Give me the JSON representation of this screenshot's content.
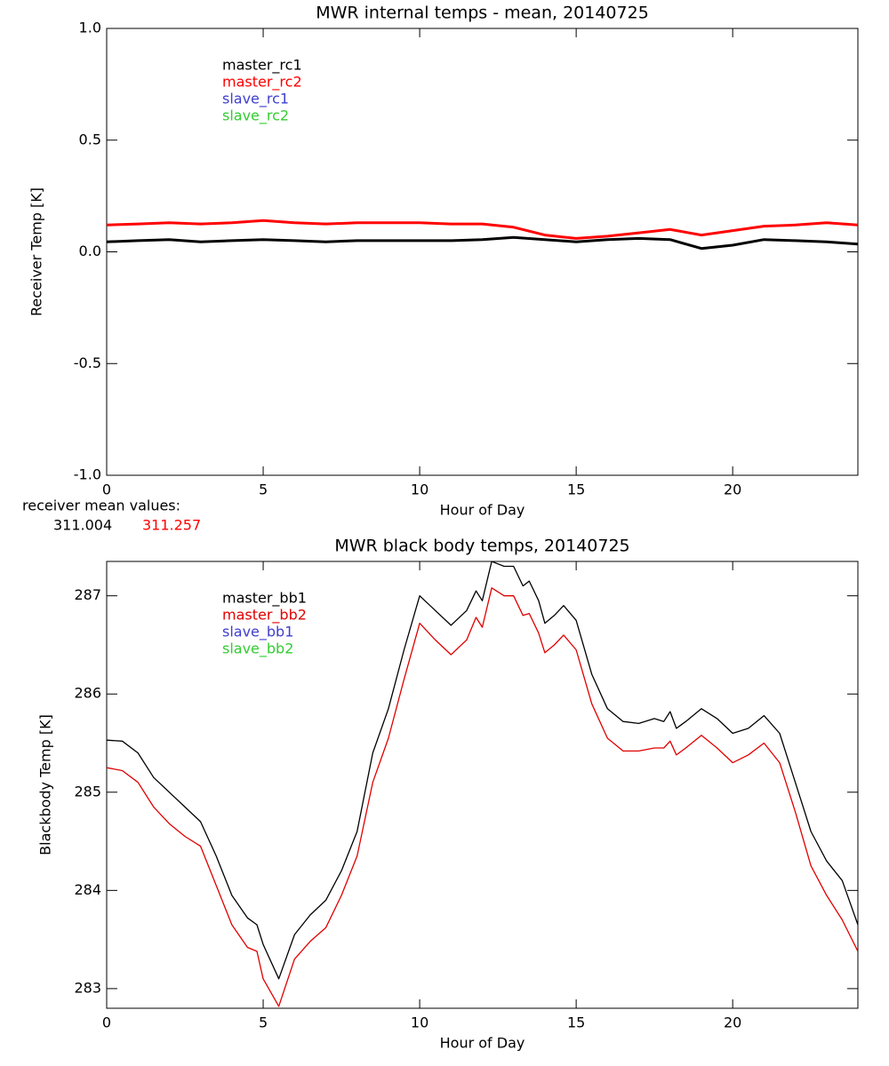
{
  "chart_data": [
    {
      "type": "line",
      "title": "MWR internal temps - mean, 20140725",
      "xlabel": "Hour of Day",
      "ylabel": "Receiver Temp [K]",
      "xlim": [
        0,
        24
      ],
      "xticks": [
        0,
        5,
        10,
        15,
        20
      ],
      "ylim": [
        -1,
        1
      ],
      "yticks": [
        {
          "value": -1,
          "label": "-1.0"
        },
        {
          "value": -0.5,
          "label": "-0.5"
        },
        {
          "value": 0,
          "label": "0.0"
        },
        {
          "value": 0.5,
          "label": "0.5"
        },
        {
          "value": 1,
          "label": "1.0"
        }
      ],
      "x": [
        0,
        1,
        2,
        3,
        4,
        5,
        6,
        7,
        8,
        9,
        10,
        11,
        12,
        13,
        14,
        15,
        16,
        17,
        18,
        19,
        20,
        21,
        22,
        23,
        24
      ],
      "series": [
        {
          "name": "master_rc1",
          "color": "#000000",
          "values": [
            0.045,
            0.05,
            0.055,
            0.045,
            0.05,
            0.055,
            0.05,
            0.045,
            0.05,
            0.05,
            0.05,
            0.05,
            0.055,
            0.065,
            0.055,
            0.045,
            0.055,
            0.06,
            0.055,
            0.015,
            0.03,
            0.055,
            0.05,
            0.045,
            0.035
          ]
        },
        {
          "name": "master_rc2",
          "color": "#ff0000",
          "values": [
            0.12,
            0.125,
            0.13,
            0.125,
            0.13,
            0.14,
            0.13,
            0.125,
            0.13,
            0.13,
            0.13,
            0.125,
            0.125,
            0.11,
            0.075,
            0.06,
            0.07,
            0.085,
            0.1,
            0.075,
            0.095,
            0.115,
            0.12,
            0.13,
            0.12
          ]
        },
        {
          "name": "slave_rc1",
          "color": "#3f3fcf",
          "values": [
            null,
            null,
            null,
            null,
            null,
            null,
            null,
            null,
            null,
            null,
            null,
            null,
            null,
            null,
            null,
            null,
            null,
            null,
            null,
            null,
            null,
            null,
            null,
            null,
            null
          ]
        },
        {
          "name": "slave_rc2",
          "color": "#33cc33",
          "values": [
            null,
            null,
            null,
            null,
            null,
            null,
            null,
            null,
            null,
            null,
            null,
            null,
            null,
            null,
            null,
            null,
            null,
            null,
            null,
            null,
            null,
            null,
            null,
            null,
            null
          ]
        }
      ],
      "annotation": "receiver mean values:",
      "mean_values": [
        311.004,
        311.257
      ]
    },
    {
      "type": "line",
      "title": "MWR black body temps, 20140725",
      "xlabel": "Hour of Day",
      "ylabel": "Blackbody Temp [K]",
      "xlim": [
        0,
        24
      ],
      "xticks": [
        0,
        5,
        10,
        15,
        20
      ],
      "ylim": [
        282.8,
        287.35
      ],
      "yticks": [
        283,
        284,
        285,
        286,
        287
      ],
      "x": [
        0,
        0.5,
        1,
        1.5,
        2,
        2.5,
        3,
        3.5,
        4,
        4.5,
        4.8,
        5,
        5.5,
        6,
        6.5,
        7,
        7.5,
        8,
        8.5,
        9,
        9.5,
        10,
        10.5,
        11,
        11.5,
        11.8,
        12,
        12.3,
        12.7,
        13,
        13.3,
        13.5,
        13.8,
        14,
        14.3,
        14.6,
        15,
        15.5,
        16,
        16.5,
        17,
        17.5,
        17.8,
        18,
        18.2,
        18.5,
        19,
        19.5,
        20,
        20.5,
        21,
        21.5,
        22,
        22.5,
        23,
        23.5,
        24
      ],
      "series": [
        {
          "name": "master_bb1",
          "color": "#000000",
          "values": [
            285.53,
            285.52,
            285.4,
            285.15,
            285.0,
            284.85,
            284.7,
            284.35,
            283.95,
            283.72,
            283.65,
            283.45,
            283.1,
            283.55,
            283.75,
            283.9,
            284.2,
            284.6,
            285.4,
            285.85,
            286.45,
            287.0,
            286.85,
            286.7,
            286.85,
            287.05,
            286.95,
            287.35,
            287.3,
            287.3,
            287.1,
            287.15,
            286.95,
            286.72,
            286.8,
            286.9,
            286.75,
            286.2,
            285.85,
            285.72,
            285.7,
            285.75,
            285.72,
            285.82,
            285.65,
            285.72,
            285.85,
            285.75,
            285.6,
            285.65,
            285.78,
            285.6,
            285.1,
            284.6,
            284.3,
            284.1,
            283.65
          ]
        },
        {
          "name": "master_bb2",
          "color": "#e00000",
          "values": [
            285.25,
            285.22,
            285.1,
            284.85,
            284.68,
            284.55,
            284.45,
            284.05,
            283.65,
            283.42,
            283.38,
            283.1,
            282.82,
            283.3,
            283.48,
            283.62,
            283.95,
            284.35,
            285.1,
            285.55,
            286.15,
            286.72,
            286.55,
            286.4,
            286.55,
            286.78,
            286.68,
            287.08,
            287.0,
            287.0,
            286.8,
            286.82,
            286.62,
            286.42,
            286.5,
            286.6,
            286.45,
            285.9,
            285.55,
            285.42,
            285.42,
            285.45,
            285.45,
            285.52,
            285.38,
            285.45,
            285.58,
            285.45,
            285.3,
            285.38,
            285.5,
            285.3,
            284.8,
            284.25,
            283.95,
            283.7,
            283.38
          ]
        },
        {
          "name": "slave_bb1",
          "color": "#3f3fcf",
          "values": [
            null,
            null,
            null,
            null,
            null,
            null,
            null,
            null,
            null,
            null,
            null,
            null,
            null,
            null,
            null,
            null,
            null,
            null,
            null,
            null,
            null,
            null,
            null,
            null,
            null,
            null,
            null,
            null,
            null,
            null,
            null,
            null,
            null,
            null,
            null,
            null,
            null,
            null,
            null,
            null,
            null,
            null,
            null,
            null,
            null,
            null,
            null,
            null,
            null,
            null,
            null,
            null,
            null,
            null,
            null,
            null,
            null
          ]
        },
        {
          "name": "slave_bb2",
          "color": "#33cc33",
          "values": [
            null,
            null,
            null,
            null,
            null,
            null,
            null,
            null,
            null,
            null,
            null,
            null,
            null,
            null,
            null,
            null,
            null,
            null,
            null,
            null,
            null,
            null,
            null,
            null,
            null,
            null,
            null,
            null,
            null,
            null,
            null,
            null,
            null,
            null,
            null,
            null,
            null,
            null,
            null,
            null,
            null,
            null,
            null,
            null,
            null,
            null,
            null,
            null,
            null,
            null,
            null,
            null,
            null,
            null,
            null,
            null,
            null
          ]
        }
      ]
    }
  ]
}
